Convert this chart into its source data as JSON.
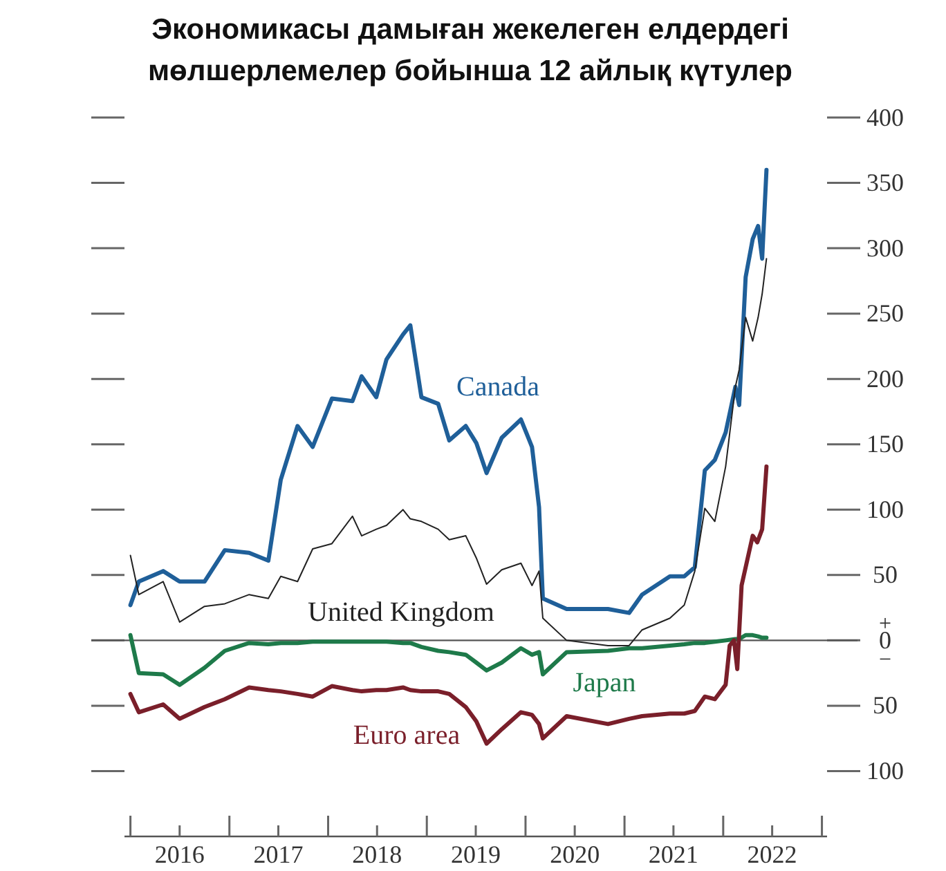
{
  "chart_data": {
    "type": "line",
    "title": "Экономикасы дамыған жекелеген елдердегі мөлшерлемелер бойынша 12 айлық күтулер",
    "xlim": [
      "2015-12-10",
      "2023-01-20"
    ],
    "xticks": [
      {
        "value": "2016-01-01",
        "label": null
      },
      {
        "value": "2016-07-01",
        "label": "2016"
      },
      {
        "value": "2017-01-01",
        "label": null
      },
      {
        "value": "2017-07-01",
        "label": "2017"
      },
      {
        "value": "2018-01-01",
        "label": null
      },
      {
        "value": "2018-07-01",
        "label": "2018"
      },
      {
        "value": "2019-01-01",
        "label": null
      },
      {
        "value": "2019-07-01",
        "label": "2019"
      },
      {
        "value": "2020-01-01",
        "label": null
      },
      {
        "value": "2020-07-01",
        "label": "2020"
      },
      {
        "value": "2021-01-01",
        "label": null
      },
      {
        "value": "2021-07-01",
        "label": "2021"
      },
      {
        "value": "2022-01-01",
        "label": null
      },
      {
        "value": "2022-07-01",
        "label": "2022"
      },
      {
        "value": "2023-01-01",
        "label": null
      }
    ],
    "ylim": [
      -150,
      400
    ],
    "yticks": [
      {
        "value": -100,
        "label": "100"
      },
      {
        "value": -50,
        "label": "50"
      },
      0,
      50,
      100,
      150,
      200,
      250,
      300,
      350,
      400
    ],
    "ref_lines": [
      {
        "axis": "y",
        "value": 0,
        "color": "#555555"
      }
    ],
    "annotations": [
      "+",
      "−"
    ],
    "grid": false,
    "legend": false,
    "series": [
      {
        "name": "Canada",
        "color": "#1f5f99",
        "x": [
          "2016-01-01",
          "2016-02-01",
          "2016-05-01",
          "2016-07-01",
          "2016-10-01",
          "2016-12-15",
          "2017-03-15",
          "2017-05-25",
          "2017-07-10",
          "2017-09-10",
          "2017-11-05",
          "2018-01-15",
          "2018-04-01",
          "2018-05-05",
          "2018-06-28",
          "2018-08-05",
          "2018-10-05",
          "2018-11-01",
          "2018-12-12",
          "2019-02-12",
          "2019-03-25",
          "2019-05-25",
          "2019-07-03",
          "2019-08-10",
          "2019-10-05",
          "2019-12-15",
          "2020-01-25",
          "2020-02-20",
          "2020-03-05",
          "2020-06-01",
          "2020-11-01",
          "2021-01-18",
          "2021-03-07",
          "2021-06-18",
          "2021-08-10",
          "2021-09-18",
          "2021-10-25",
          "2021-12-01",
          "2022-01-10",
          "2022-02-15",
          "2022-03-01",
          "2022-03-25",
          "2022-04-20",
          "2022-05-10",
          "2022-05-25",
          "2022-06-10"
        ],
        "values": [
          27,
          45,
          53,
          45,
          45,
          69,
          67,
          61,
          123,
          164,
          148,
          185,
          183,
          202,
          186,
          215,
          234,
          241,
          186,
          181,
          153,
          164,
          151,
          128,
          155,
          169,
          148,
          102,
          32,
          24,
          24,
          21,
          35,
          49,
          49,
          56,
          130,
          138,
          159,
          194,
          180,
          278,
          307,
          317,
          292,
          360
        ]
      },
      {
        "name": "United Kingdom",
        "color": "#222222",
        "x": [
          "2016-01-01",
          "2016-02-01",
          "2016-05-01",
          "2016-07-01",
          "2016-10-01",
          "2016-12-15",
          "2017-03-15",
          "2017-05-25",
          "2017-07-10",
          "2017-09-10",
          "2017-11-05",
          "2018-01-15",
          "2018-04-01",
          "2018-05-05",
          "2018-06-28",
          "2018-08-05",
          "2018-10-05",
          "2018-11-01",
          "2018-12-12",
          "2019-02-12",
          "2019-03-25",
          "2019-05-25",
          "2019-07-03",
          "2019-08-10",
          "2019-10-05",
          "2019-12-15",
          "2020-01-25",
          "2020-02-20",
          "2020-03-05",
          "2020-06-01",
          "2020-11-01",
          "2021-01-18",
          "2021-03-07",
          "2021-06-18",
          "2021-08-10",
          "2021-09-18",
          "2021-10-25",
          "2021-12-01",
          "2022-01-10",
          "2022-02-15",
          "2022-03-01",
          "2022-03-25",
          "2022-04-20",
          "2022-05-10",
          "2022-05-25",
          "2022-06-10"
        ],
        "values": [
          65,
          35,
          45,
          14,
          26,
          28,
          35,
          32,
          49,
          45,
          70,
          74,
          95,
          80,
          85,
          88,
          100,
          93,
          91,
          85,
          77,
          80,
          63,
          43,
          54,
          59,
          42,
          53,
          17,
          0,
          -4,
          -4,
          8,
          17,
          27,
          53,
          101,
          91,
          133,
          194,
          207,
          247,
          229,
          247,
          265,
          292
        ]
      },
      {
        "name": "Japan",
        "color": "#1e7a4a",
        "x": [
          "2016-01-01",
          "2016-02-01",
          "2016-05-01",
          "2016-07-01",
          "2016-10-01",
          "2016-12-15",
          "2017-03-15",
          "2017-05-25",
          "2017-07-10",
          "2017-09-10",
          "2017-11-05",
          "2018-01-15",
          "2018-04-01",
          "2018-05-05",
          "2018-06-28",
          "2018-08-05",
          "2018-10-05",
          "2018-11-01",
          "2018-12-12",
          "2019-02-12",
          "2019-03-25",
          "2019-05-25",
          "2019-07-03",
          "2019-08-10",
          "2019-10-05",
          "2019-12-15",
          "2020-01-25",
          "2020-02-20",
          "2020-03-05",
          "2020-06-01",
          "2020-11-01",
          "2021-01-18",
          "2021-03-07",
          "2021-06-18",
          "2021-08-10",
          "2021-09-18",
          "2021-10-25",
          "2021-12-01",
          "2022-01-10",
          "2022-02-15",
          "2022-03-01",
          "2022-03-25",
          "2022-04-20",
          "2022-05-10",
          "2022-05-25",
          "2022-06-10"
        ],
        "values": [
          4,
          -25,
          -26,
          -34,
          -21,
          -8,
          -2,
          -3,
          -2,
          -2,
          -1,
          -1,
          -1,
          -1,
          -1,
          -1,
          -2,
          -2,
          -5,
          -8,
          -9,
          -11,
          -17,
          -23,
          -17,
          -6,
          -11,
          -9,
          -26,
          -9,
          -8,
          -6,
          -6,
          -4,
          -3,
          -2,
          -2,
          -1,
          0,
          1,
          1,
          4,
          4,
          3,
          2,
          2
        ]
      },
      {
        "name": "Euro area",
        "color": "#7a1f2a",
        "x": [
          "2016-01-01",
          "2016-02-01",
          "2016-05-01",
          "2016-07-01",
          "2016-10-01",
          "2016-12-15",
          "2017-03-15",
          "2017-05-25",
          "2017-07-10",
          "2017-09-10",
          "2017-11-05",
          "2018-01-15",
          "2018-04-01",
          "2018-05-05",
          "2018-06-28",
          "2018-08-05",
          "2018-10-05",
          "2018-11-01",
          "2018-12-12",
          "2019-02-12",
          "2019-03-25",
          "2019-05-25",
          "2019-07-03",
          "2019-08-10",
          "2019-10-05",
          "2019-12-15",
          "2020-01-25",
          "2020-02-20",
          "2020-03-05",
          "2020-06-01",
          "2020-11-01",
          "2021-01-18",
          "2021-03-07",
          "2021-06-18",
          "2021-08-10",
          "2021-09-18",
          "2021-10-25",
          "2021-12-01",
          "2022-01-10",
          "2022-01-25",
          "2022-02-10",
          "2022-02-22",
          "2022-03-10",
          "2022-04-20",
          "2022-05-07",
          "2022-05-25",
          "2022-06-10"
        ],
        "values": [
          -41,
          -55,
          -49,
          -60,
          -51,
          -45,
          -36,
          -38,
          -39,
          -41,
          -43,
          -35,
          -38,
          -39,
          -38,
          -38,
          -36,
          -38,
          -39,
          -39,
          -41,
          -51,
          -62,
          -79,
          -68,
          -55,
          -57,
          -64,
          -75,
          -58,
          -64,
          -60,
          -58,
          -56,
          -56,
          -54,
          -43,
          -45,
          -34,
          -4,
          0,
          -22,
          42,
          80,
          75,
          85,
          133
        ]
      }
    ]
  }
}
